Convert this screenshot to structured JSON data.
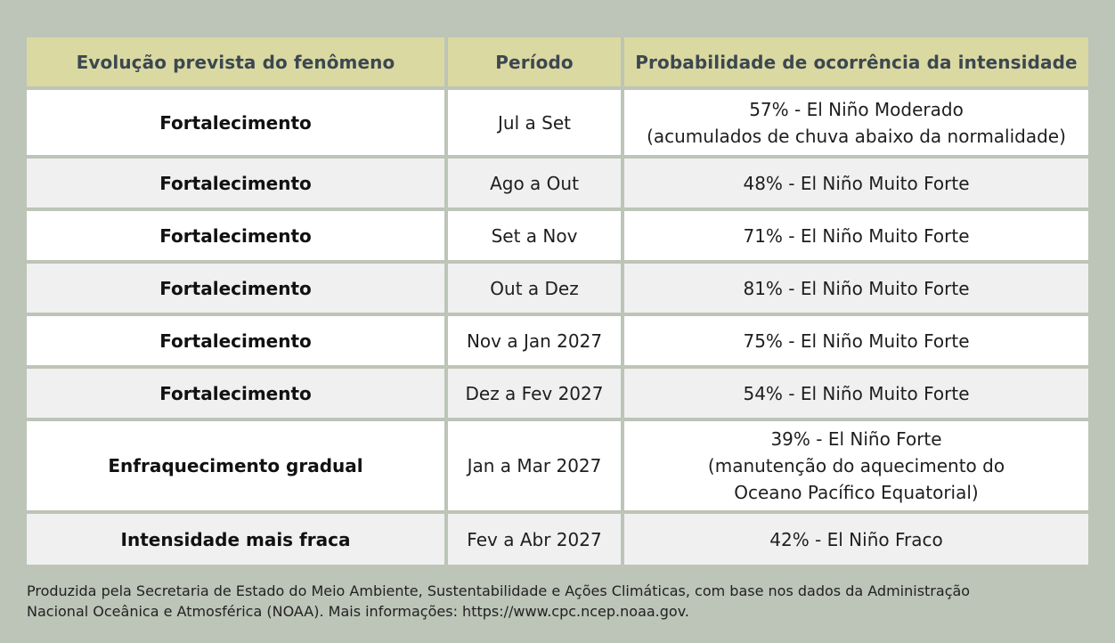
{
  "table": {
    "headers": [
      "Evolução prevista do fenômeno",
      "Período",
      "Probabilidade de ocorrência da intensidade"
    ],
    "rows": [
      {
        "evolucao": "Fortalecimento",
        "periodo": "Jul a Set",
        "probabilidade": [
          "57% - El Niño Moderado",
          "(acumulados de chuva abaixo da normalidade)"
        ]
      },
      {
        "evolucao": "Fortalecimento",
        "periodo": "Ago a Out",
        "probabilidade": [
          "48% - El Niño Muito Forte"
        ]
      },
      {
        "evolucao": "Fortalecimento",
        "periodo": "Set a Nov",
        "probabilidade": [
          "71% - El Niño Muito Forte"
        ]
      },
      {
        "evolucao": "Fortalecimento",
        "periodo": "Out a Dez",
        "probabilidade": [
          "81% - El Niño Muito Forte"
        ]
      },
      {
        "evolucao": "Fortalecimento",
        "periodo": "Nov a Jan 2027",
        "probabilidade": [
          "75% - El Niño Muito Forte"
        ]
      },
      {
        "evolucao": "Fortalecimento",
        "periodo": "Dez a Fev 2027",
        "probabilidade": [
          "54% - El Niño Muito Forte"
        ]
      },
      {
        "evolucao": "Enfraquecimento gradual",
        "periodo": "Jan a Mar 2027",
        "probabilidade": [
          "39% - El Niño Forte",
          "(manutenção do aquecimento do",
          "Oceano Pacífico Equatorial)"
        ]
      },
      {
        "evolucao": "Intensidade mais fraca",
        "periodo": "Fev a Abr 2027",
        "probabilidade": [
          "42% - El Niño Fraco"
        ]
      }
    ]
  },
  "footnote": {
    "line1": "Produzida pela Secretaria de Estado do Meio Ambiente, Sustentabilidade e Ações Climáticas, com base nos dados da Administração",
    "line2": "Nacional Oceânica e Atmosférica (NOAA). Mais informações: https://www.cpc.ncep.noaa.gov."
  },
  "colors": {
    "background": "#bdc4b8",
    "header_bg": "#dbd9a2",
    "header_text": "#3c4850",
    "row_white": "#ffffff",
    "row_gray": "#f0f0f0"
  }
}
